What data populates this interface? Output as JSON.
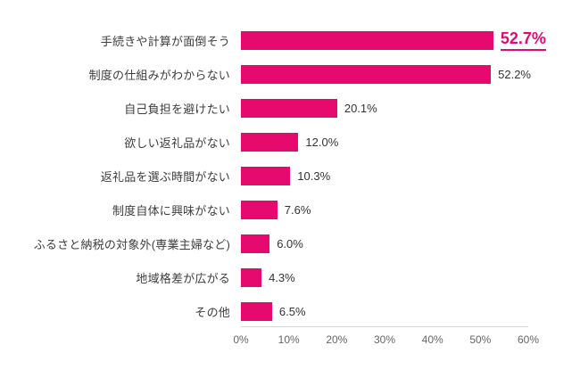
{
  "chart_data": {
    "type": "bar",
    "orientation": "horizontal",
    "title": "",
    "xlabel": "",
    "ylabel": "",
    "categories": [
      "手続きや計算が面倒そう",
      "制度の仕組みがわからない",
      "自己負担を避けたい",
      "欲しい返礼品がない",
      "返礼品を選ぶ時間がない",
      "制度自体に興味がない",
      "ふるさと納税の対象外(専業主婦など)",
      "地域格差が広がる",
      "その他"
    ],
    "values": [
      52.7,
      52.2,
      20.1,
      12.0,
      10.3,
      7.6,
      6.0,
      4.3,
      6.5
    ],
    "value_labels": [
      "52.7%",
      "52.2%",
      "20.1%",
      "12.0%",
      "10.3%",
      "7.6%",
      "6.0%",
      "4.3%",
      "6.5%"
    ],
    "highlight_index": 0,
    "xlim": [
      0,
      60
    ],
    "x_tick_values": [
      0,
      10,
      20,
      30,
      40,
      50,
      60
    ],
    "x_tick_labels": [
      "0%",
      "10%",
      "20%",
      "30%",
      "40%",
      "50%",
      "60%"
    ],
    "grid": false,
    "legend": false,
    "colors": {
      "bar": "#e60a6e",
      "highlight_value": "#e60a6e",
      "value_text": "#333333",
      "label_text": "#3d3d3d",
      "tick_text": "#666666",
      "axis_line": "#d8d8d8"
    }
  }
}
